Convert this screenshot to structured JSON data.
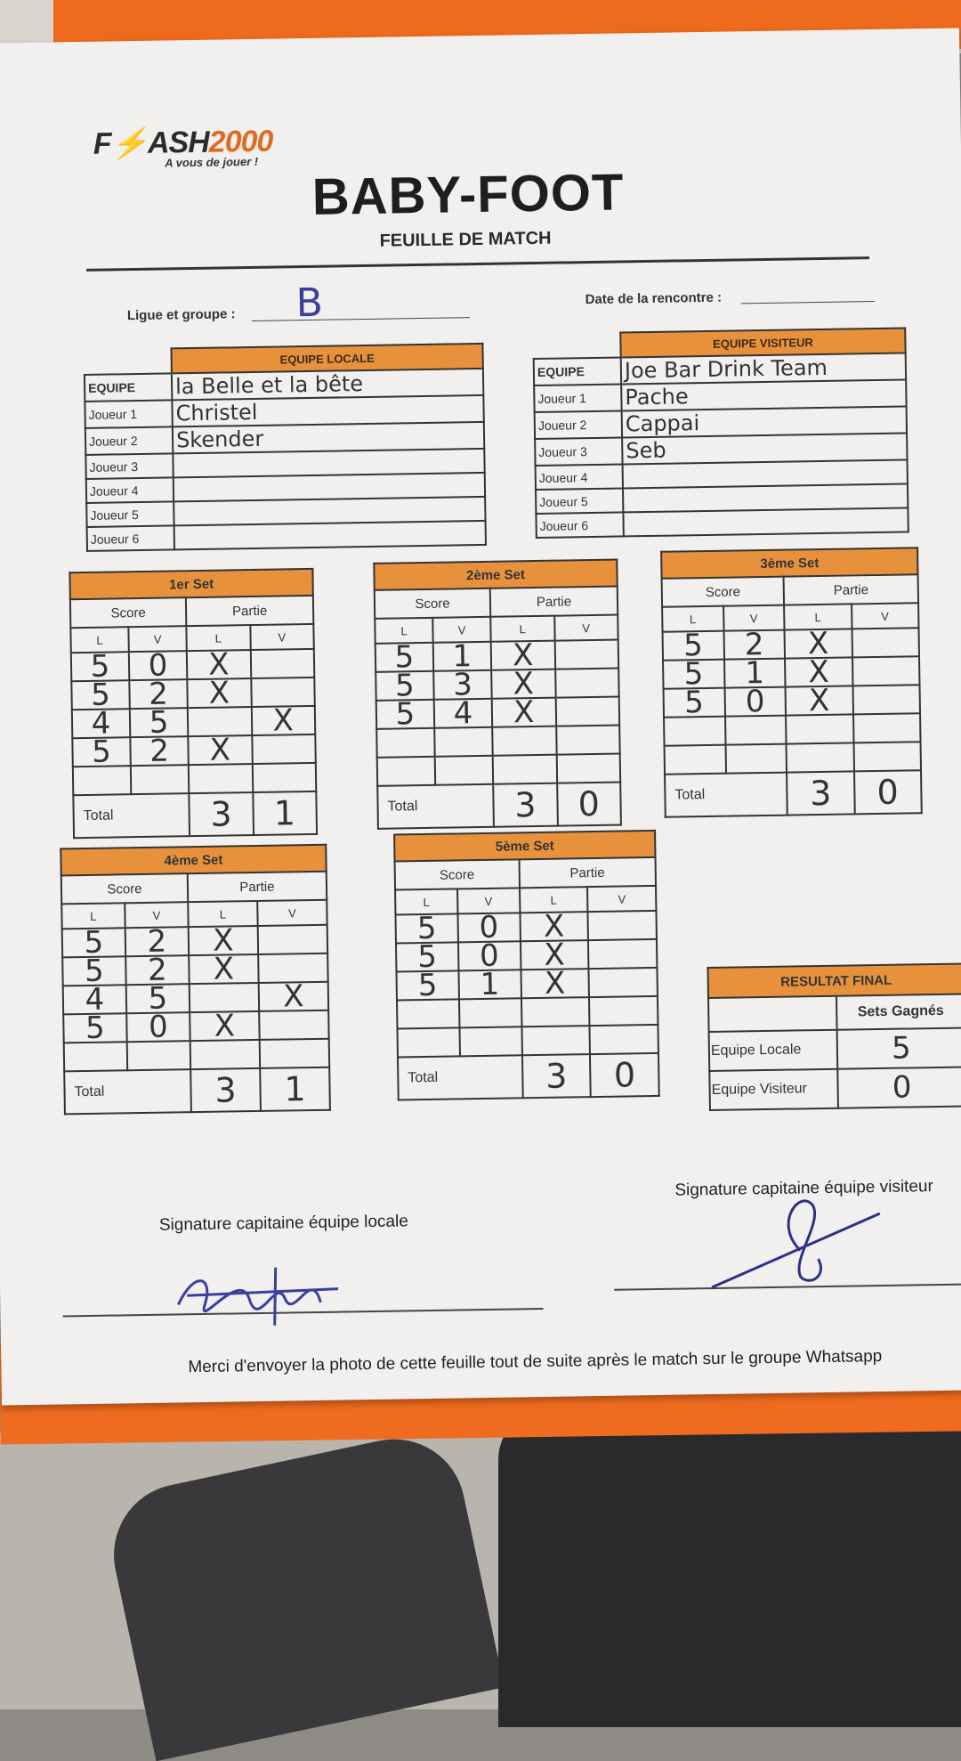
{
  "header": {
    "logo_text": "FLASH2000",
    "logo_part1": "F",
    "logo_part2": "ASH",
    "logo_part3": "2000",
    "tagline": "A vous de jouer !",
    "title": "BABY-FOOT",
    "subtitle": "FEUILLE DE MATCH"
  },
  "meta": {
    "ligue_label": "Ligue et groupe :",
    "ligue_value": "B",
    "date_label": "Date de la rencontre :",
    "date_value": ""
  },
  "local": {
    "header": "EQUIPE LOCALE",
    "rows": [
      {
        "label": "EQUIPE",
        "value": "la Belle et la bête"
      },
      {
        "label": "Joueur 1",
        "value": "Christel"
      },
      {
        "label": "Joueur 2",
        "value": "Skender"
      },
      {
        "label": "Joueur 3",
        "value": ""
      },
      {
        "label": "Joueur 4",
        "value": ""
      },
      {
        "label": "Joueur 5",
        "value": ""
      },
      {
        "label": "Joueur 6",
        "value": ""
      }
    ]
  },
  "visitor": {
    "header": "EQUIPE VISITEUR",
    "rows": [
      {
        "label": "EQUIPE",
        "value": "Joe Bar Drink Team"
      },
      {
        "label": "Joueur 1",
        "value": "Pache"
      },
      {
        "label": "Joueur 2",
        "value": "Cappai"
      },
      {
        "label": "Joueur 3",
        "value": "Seb"
      },
      {
        "label": "Joueur 4",
        "value": ""
      },
      {
        "label": "Joueur 5",
        "value": ""
      },
      {
        "label": "Joueur 6",
        "value": ""
      }
    ]
  },
  "labels": {
    "score": "Score",
    "partie": "Partie",
    "l": "L",
    "v": "V",
    "total": "Total",
    "mark": "X"
  },
  "sets": [
    {
      "title": "1er Set",
      "rows": [
        [
          "5",
          "0",
          "X",
          ""
        ],
        [
          "5",
          "2",
          "X",
          ""
        ],
        [
          "4",
          "5",
          "",
          "X"
        ],
        [
          "5",
          "2",
          "X",
          ""
        ],
        [
          "",
          "",
          "",
          ""
        ]
      ],
      "total": [
        "3",
        "1"
      ]
    },
    {
      "title": "2ème Set",
      "rows": [
        [
          "5",
          "1",
          "X",
          ""
        ],
        [
          "5",
          "3",
          "X",
          ""
        ],
        [
          "5",
          "4",
          "X",
          ""
        ],
        [
          "",
          "",
          "",
          ""
        ],
        [
          "",
          "",
          "",
          ""
        ]
      ],
      "total": [
        "3",
        "0"
      ]
    },
    {
      "title": "3ème Set",
      "rows": [
        [
          "5",
          "2",
          "X",
          ""
        ],
        [
          "5",
          "1",
          "X",
          ""
        ],
        [
          "5",
          "0",
          "X",
          ""
        ],
        [
          "",
          "",
          "",
          ""
        ],
        [
          "",
          "",
          "",
          ""
        ]
      ],
      "total": [
        "3",
        "0"
      ]
    },
    {
      "title": "4ème Set",
      "rows": [
        [
          "5",
          "2",
          "X",
          ""
        ],
        [
          "5",
          "2",
          "X",
          ""
        ],
        [
          "4",
          "5",
          "",
          "X"
        ],
        [
          "5",
          "0",
          "X",
          ""
        ],
        [
          "",
          "",
          "",
          ""
        ]
      ],
      "total": [
        "3",
        "1"
      ]
    },
    {
      "title": "5ème Set",
      "rows": [
        [
          "5",
          "0",
          "X",
          ""
        ],
        [
          "5",
          "0",
          "X",
          ""
        ],
        [
          "5",
          "1",
          "X",
          ""
        ],
        [
          "",
          "",
          "",
          ""
        ],
        [
          "",
          "",
          "",
          ""
        ]
      ],
      "total": [
        "3",
        "0"
      ]
    }
  ],
  "result": {
    "header": "RESULTAT FINAL",
    "col": "Sets Gagnés",
    "local_label": "Equipe Locale",
    "local_value": "5",
    "visitor_label": "Equipe Visiteur",
    "visitor_value": "0"
  },
  "signatures": {
    "local_label": "Signature capitaine équipe locale",
    "visitor_label": "Signature capitaine équipe visiteur"
  },
  "footer": "Merci d'envoyer la photo de cette feuille tout de suite après le match sur le groupe Whatsapp",
  "colors": {
    "orange": "#e8913d",
    "ink": "#3b3f9c",
    "folder": "#ef6b1f"
  }
}
